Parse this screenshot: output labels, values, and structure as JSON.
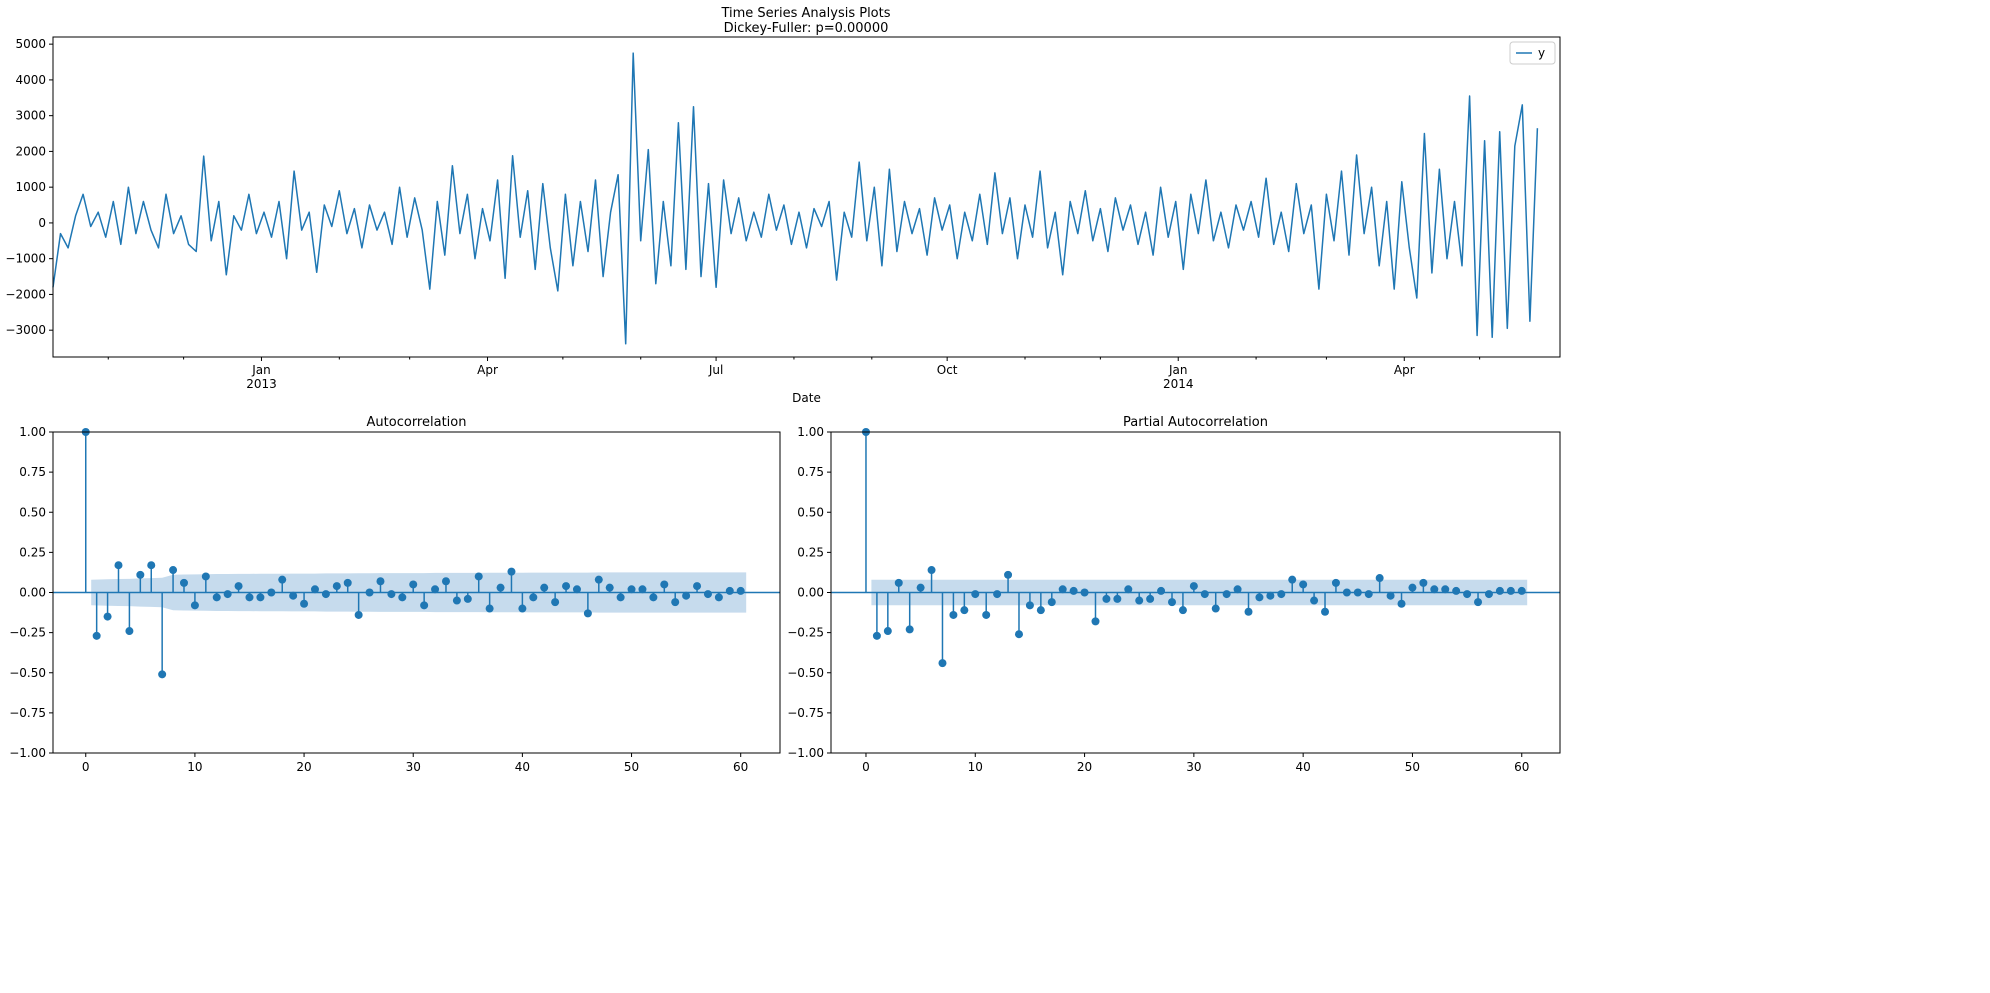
{
  "figure": {
    "title_line1": "Time Series Analysis Plots",
    "title_line2": "Dickey-Fuller: p=0.00000"
  },
  "colors": {
    "series": "#1f77b4",
    "band": "#c6dbed",
    "axis": "#000000"
  },
  "chart_data": [
    {
      "type": "line",
      "name": "time-series",
      "xlabel": "Date",
      "ylabel": "",
      "x_unit": "days since first observation (sampled every 3 days)",
      "x_step_days": 3,
      "xlim": [
        0,
        600
      ],
      "ylim": [
        -3750,
        5200
      ],
      "yticks": [
        -3000,
        -2000,
        -1000,
        0,
        1000,
        2000,
        3000,
        4000,
        5000
      ],
      "xticks": [
        {
          "day": 83,
          "label": "Jan",
          "sublabel": "2013"
        },
        {
          "day": 173,
          "label": "Apr",
          "sublabel": ""
        },
        {
          "day": 264,
          "label": "Jul",
          "sublabel": ""
        },
        {
          "day": 356,
          "label": "Oct",
          "sublabel": ""
        },
        {
          "day": 448,
          "label": "Jan",
          "sublabel": "2014"
        },
        {
          "day": 538,
          "label": "Apr",
          "sublabel": ""
        }
      ],
      "minor_xticks": [
        22,
        52,
        114,
        142,
        203,
        234,
        295,
        326,
        387,
        417,
        479,
        507,
        568
      ],
      "legend": {
        "entries": [
          "y"
        ],
        "position": "top-right"
      },
      "grid": false,
      "values": [
        -1800,
        -300,
        -700,
        200,
        800,
        -100,
        300,
        -400,
        600,
        -600,
        1000,
        -300,
        600,
        -200,
        -700,
        800,
        -300,
        200,
        -600,
        -800,
        1870,
        -500,
        600,
        -1450,
        200,
        -200,
        800,
        -300,
        300,
        -400,
        600,
        -1000,
        1450,
        -200,
        300,
        -1380,
        500,
        -100,
        900,
        -300,
        400,
        -700,
        500,
        -200,
        300,
        -600,
        1000,
        -400,
        700,
        -200,
        -1850,
        600,
        -900,
        1600,
        -300,
        800,
        -1000,
        400,
        -500,
        1200,
        -1550,
        1880,
        -400,
        900,
        -1300,
        1100,
        -700,
        -1900,
        800,
        -1200,
        600,
        -800,
        1200,
        -1500,
        300,
        1350,
        -3380,
        4750,
        -500,
        2050,
        -1700,
        600,
        -1200,
        2800,
        -1300,
        3250,
        -1500,
        1100,
        -1800,
        1200,
        -300,
        700,
        -500,
        300,
        -400,
        800,
        -200,
        500,
        -600,
        300,
        -700,
        400,
        -100,
        600,
        -1600,
        300,
        -400,
        1700,
        -500,
        1000,
        -1200,
        1500,
        -800,
        600,
        -300,
        400,
        -900,
        700,
        -200,
        500,
        -1000,
        300,
        -500,
        800,
        -600,
        1400,
        -300,
        700,
        -1000,
        500,
        -400,
        1450,
        -700,
        300,
        -1450,
        600,
        -300,
        900,
        -500,
        400,
        -800,
        700,
        -200,
        500,
        -600,
        300,
        -900,
        1000,
        -400,
        600,
        -1300,
        800,
        -300,
        1200,
        -500,
        300,
        -700,
        500,
        -200,
        600,
        -400,
        1250,
        -600,
        300,
        -800,
        1100,
        -300,
        500,
        -1850,
        800,
        -500,
        1450,
        -900,
        1900,
        -300,
        1000,
        -1200,
        600,
        -1850,
        1150,
        -700,
        -2100,
        2500,
        -1400,
        1500,
        -1000,
        600,
        -1200,
        3550,
        -3150,
        2300,
        -3200,
        2550,
        -2950,
        2150,
        3300,
        -2750,
        2650
      ]
    },
    {
      "type": "stem",
      "name": "acf",
      "title": "Autocorrelation",
      "xlim": [
        -3,
        63.6
      ],
      "ylim": [
        -1,
        1
      ],
      "xticks": [
        0,
        10,
        20,
        30,
        40,
        50,
        60
      ],
      "yticks": [
        "-1.00",
        "-0.75",
        "-0.50",
        "-0.25",
        "0.00",
        "0.25",
        "0.50",
        "0.75",
        "1.00"
      ],
      "lags": 60,
      "values": [
        1,
        -0.27,
        -0.15,
        0.17,
        -0.24,
        0.11,
        0.17,
        -0.51,
        0.14,
        0.06,
        -0.08,
        0.1,
        -0.03,
        -0.01,
        0.04,
        -0.03,
        -0.03,
        0.0,
        0.08,
        -0.02,
        -0.07,
        0.02,
        -0.01,
        0.04,
        0.06,
        -0.14,
        0.0,
        0.07,
        -0.01,
        -0.03,
        0.05,
        -0.08,
        0.02,
        0.07,
        -0.05,
        -0.04,
        0.1,
        -0.1,
        0.03,
        0.13,
        -0.1,
        -0.03,
        0.03,
        -0.06,
        0.04,
        0.02,
        -0.13,
        0.08,
        0.03,
        -0.03,
        0.02,
        0.02,
        -0.03,
        0.05,
        -0.06,
        -0.02,
        0.04,
        -0.01,
        -0.03,
        0.01,
        0.01
      ],
      "confint": [
        0.08,
        0.082,
        0.084,
        0.085,
        0.088,
        0.09,
        0.092,
        0.11,
        0.112,
        0.113,
        0.114,
        0.115,
        0.115,
        0.116,
        0.116,
        0.117,
        0.117,
        0.117,
        0.118,
        0.118,
        0.118,
        0.119,
        0.119,
        0.119,
        0.12,
        0.12,
        0.121,
        0.121,
        0.121,
        0.121,
        0.121,
        0.122,
        0.122,
        0.122,
        0.122,
        0.122,
        0.123,
        0.123,
        0.123,
        0.123,
        0.124,
        0.124,
        0.124,
        0.124,
        0.124,
        0.124,
        0.125,
        0.125,
        0.125,
        0.125,
        0.125,
        0.125,
        0.125,
        0.125,
        0.125,
        0.125,
        0.125,
        0.125,
        0.125,
        0.125
      ]
    },
    {
      "type": "stem",
      "name": "pacf",
      "title": "Partial Autocorrelation",
      "xlim": [
        -3.2,
        63.5
      ],
      "ylim": [
        -1,
        1
      ],
      "xticks": [
        0,
        10,
        20,
        30,
        40,
        50,
        60
      ],
      "yticks": [
        "-1.00",
        "-0.75",
        "-0.50",
        "-0.25",
        "0.00",
        "0.25",
        "0.50",
        "0.75",
        "1.00"
      ],
      "lags": 60,
      "values": [
        1,
        -0.27,
        -0.24,
        0.06,
        -0.23,
        0.03,
        0.14,
        -0.44,
        -0.14,
        -0.11,
        -0.01,
        -0.14,
        -0.01,
        0.11,
        -0.26,
        -0.08,
        -0.11,
        -0.06,
        0.02,
        0.01,
        0.0,
        -0.18,
        -0.04,
        -0.04,
        0.02,
        -0.05,
        -0.04,
        0.01,
        -0.06,
        -0.11,
        0.04,
        -0.01,
        -0.1,
        -0.01,
        0.02,
        -0.12,
        -0.03,
        -0.02,
        -0.01,
        0.08,
        0.05,
        -0.05,
        -0.12,
        0.06,
        0.0,
        0.0,
        -0.01,
        0.09,
        -0.02,
        -0.07,
        0.03,
        0.06,
        0.02,
        0.02,
        0.01,
        -0.01,
        -0.06,
        -0.01,
        0.01,
        0.01,
        0.01
      ],
      "confint_const": 0.08
    }
  ]
}
